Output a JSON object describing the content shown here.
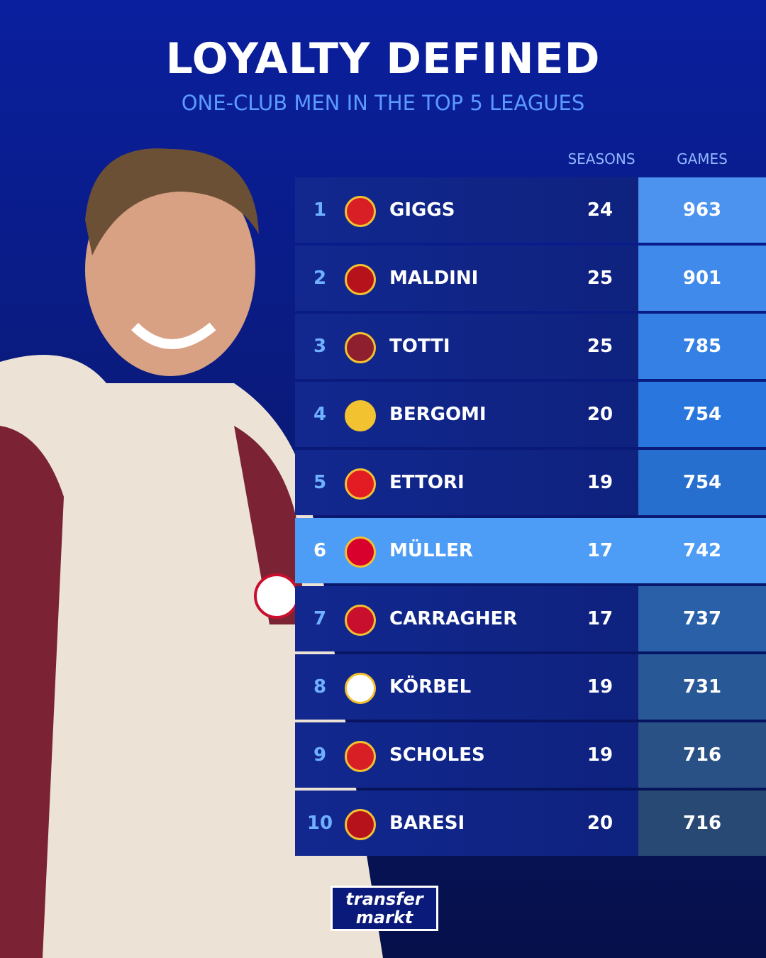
{
  "header": {
    "title": "LOYALTY DEFINED",
    "subtitle": "ONE-CLUB MEN IN THE TOP 5 LEAGUES"
  },
  "table": {
    "columns": [
      "SEASONS",
      "GAMES"
    ],
    "rows": [
      {
        "rank": "1",
        "name": "GIGGS",
        "seasons": "24",
        "games": "963"
      },
      {
        "rank": "2",
        "name": "MALDINI",
        "seasons": "25",
        "games": "901"
      },
      {
        "rank": "3",
        "name": "TOTTI",
        "seasons": "25",
        "games": "785"
      },
      {
        "rank": "4",
        "name": "BERGOMI",
        "seasons": "20",
        "games": "754"
      },
      {
        "rank": "5",
        "name": "ETTORI",
        "seasons": "19",
        "games": "754"
      },
      {
        "rank": "6",
        "name": "MÜLLER",
        "seasons": "17",
        "games": "742"
      },
      {
        "rank": "7",
        "name": "CARRAGHER",
        "seasons": "17",
        "games": "737"
      },
      {
        "rank": "8",
        "name": "KÖRBEL",
        "seasons": "19",
        "games": "731"
      },
      {
        "rank": "9",
        "name": "SCHOLES",
        "seasons": "19",
        "games": "716"
      },
      {
        "rank": "10",
        "name": "BARESI",
        "seasons": "20",
        "games": "716"
      }
    ]
  },
  "logo": {
    "lines": [
      "transfer",
      "markt"
    ]
  }
}
